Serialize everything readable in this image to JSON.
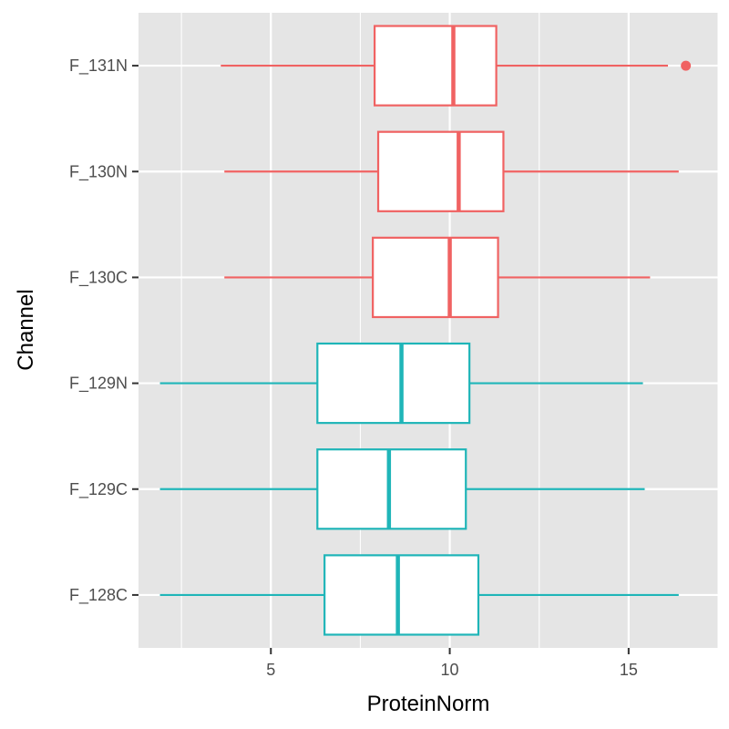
{
  "chart_data": {
    "type": "boxplot",
    "orientation": "horizontal",
    "title": "",
    "xlabel": "ProteinNorm",
    "ylabel": "Channel",
    "xlim": [
      1.3,
      17.5
    ],
    "x_ticks": [
      5,
      10,
      15
    ],
    "x_tick_labels": [
      "5",
      "10",
      "15"
    ],
    "grid": true,
    "legend": "none",
    "colors": {
      "panel": "#e5e5e5",
      "grid": "#ffffff",
      "groupA": "#f06262",
      "groupB": "#1fb5b8"
    },
    "categories": [
      "F_131N",
      "F_130N",
      "F_130C",
      "F_129N",
      "F_129C",
      "F_128C"
    ],
    "boxes": [
      {
        "category": "F_131N",
        "whisker_low": 3.6,
        "q1": 7.9,
        "median": 10.1,
        "q3": 11.3,
        "whisker_high": 16.1,
        "outliers": [
          16.6
        ],
        "color": "#f06262"
      },
      {
        "category": "F_130N",
        "whisker_low": 3.7,
        "q1": 8.0,
        "median": 10.25,
        "q3": 11.5,
        "whisker_high": 16.4,
        "outliers": [],
        "color": "#f06262"
      },
      {
        "category": "F_130C",
        "whisker_low": 3.7,
        "q1": 7.85,
        "median": 10.0,
        "q3": 11.35,
        "whisker_high": 15.6,
        "outliers": [],
        "color": "#f06262"
      },
      {
        "category": "F_129N",
        "whisker_low": 1.9,
        "q1": 6.3,
        "median": 8.65,
        "q3": 10.55,
        "whisker_high": 15.4,
        "outliers": [],
        "color": "#1fb5b8"
      },
      {
        "category": "F_129C",
        "whisker_low": 1.9,
        "q1": 6.3,
        "median": 8.3,
        "q3": 10.45,
        "whisker_high": 15.45,
        "outliers": [],
        "color": "#1fb5b8"
      },
      {
        "category": "F_128C",
        "whisker_low": 1.9,
        "q1": 6.5,
        "median": 8.55,
        "q3": 10.8,
        "whisker_high": 16.4,
        "outliers": [],
        "color": "#1fb5b8"
      }
    ]
  }
}
